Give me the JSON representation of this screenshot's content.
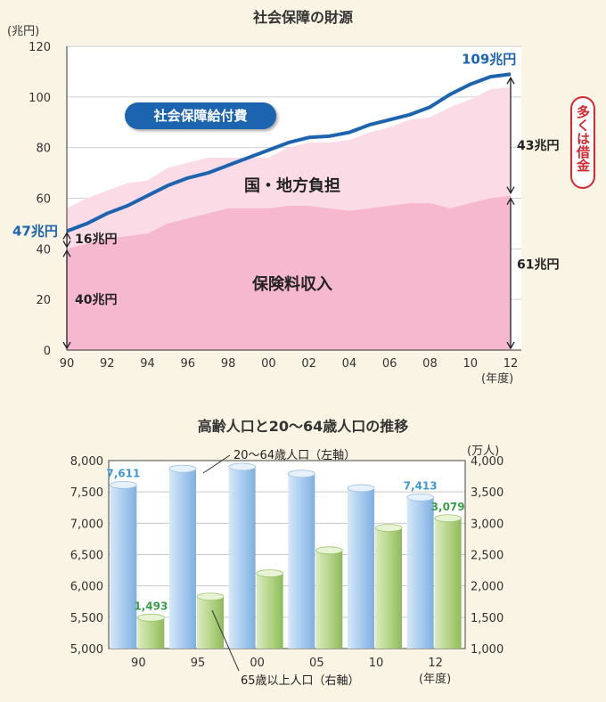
{
  "chart_data": [
    {
      "type": "area",
      "title": "社会保障の財源",
      "yunit": "(兆円)",
      "xunit": "(年度)",
      "ylim": [
        0,
        120
      ],
      "yticks": [
        0,
        20,
        40,
        60,
        80,
        100,
        120
      ],
      "xticks": [
        "90",
        "92",
        "94",
        "96",
        "98",
        "00",
        "02",
        "04",
        "06",
        "08",
        "10",
        "12"
      ],
      "x": [
        1990,
        1991,
        1992,
        1993,
        1994,
        1995,
        1996,
        1997,
        1998,
        1999,
        2000,
        2001,
        2002,
        2003,
        2004,
        2005,
        2006,
        2007,
        2008,
        2009,
        2010,
        2011,
        2012
      ],
      "series": [
        {
          "name": "保険料収入",
          "values": [
            40,
            42,
            44,
            45,
            46,
            50,
            52,
            54,
            56,
            56,
            56,
            57,
            57,
            56,
            55,
            56,
            57,
            58,
            58,
            56,
            58,
            60,
            61
          ]
        },
        {
          "name": "国・地方負担",
          "values": [
            56,
            60,
            63,
            66,
            67,
            72,
            74,
            76,
            76,
            76,
            76,
            80,
            82,
            82,
            83,
            86,
            88,
            91,
            92,
            96,
            99,
            103,
            104
          ]
        },
        {
          "name": "社会保障給付費",
          "values": [
            47,
            50,
            54,
            57,
            61,
            65,
            68,
            70,
            73,
            76,
            79,
            82,
            84,
            84.5,
            86,
            89,
            91,
            93,
            96,
            101,
            105,
            108,
            109
          ]
        }
      ],
      "annotations": {
        "start_total": "47兆円",
        "end_total": "109兆円",
        "start_public": "16兆円",
        "start_insurance": "40兆円",
        "end_public": "43兆円",
        "end_insurance": "61兆円",
        "borrowing_note": "多くは借金",
        "public_area_label": "国・地方負担",
        "insurance_area_label": "保険料収入",
        "benefit_label": "社会保障給付費"
      }
    },
    {
      "type": "bar",
      "title": "高齢人口と20～64歳人口の推移",
      "categories": [
        "90",
        "95",
        "00",
        "05",
        "10",
        "12"
      ],
      "xunit": "(年度)",
      "right_unit": "(万人)",
      "left_ylim": [
        5000,
        8000
      ],
      "right_ylim": [
        1000,
        4000
      ],
      "left_ticks": [
        "5,000",
        "5,500",
        "6,000",
        "6,500",
        "7,000",
        "7,500",
        "8,000"
      ],
      "right_ticks": [
        "1,000",
        "1,500",
        "2,000",
        "2,500",
        "3,000",
        "3,500",
        "4,000"
      ],
      "series": [
        {
          "name": "20～64歳人口（左軸）",
          "axis": "left",
          "values": [
            7611,
            7870,
            7900,
            7790,
            7560,
            7413
          ],
          "labels": [
            "7,611",
            "",
            "",
            "",
            "",
            "7,413"
          ]
        },
        {
          "name": "65歳以上人口（右軸）",
          "axis": "right",
          "values": [
            1493,
            1828,
            2200,
            2567,
            2925,
            3079
          ],
          "labels": [
            "1,493",
            "",
            "",
            "",
            "",
            "3,079"
          ]
        }
      ]
    }
  ],
  "colors": {
    "insurance": "#f5b8ce",
    "public": "#fbdce6",
    "benefit_line": "#1c64b0",
    "working_bar": "#a9ccee",
    "elderly_bar": "#b6d68a",
    "label_blue": "#3d9ad6",
    "label_green": "#3aa047",
    "note_red": "#d7282f"
  }
}
